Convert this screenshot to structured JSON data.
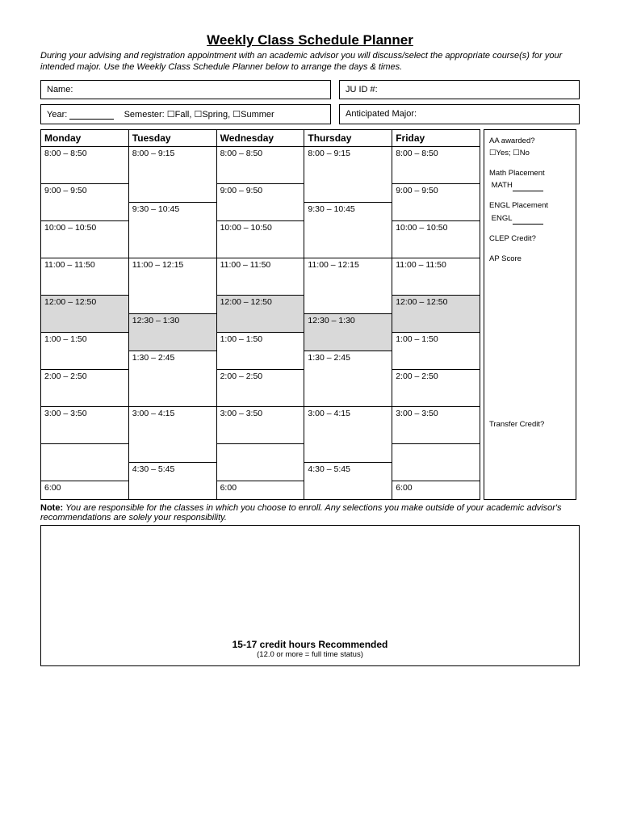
{
  "title": "Weekly Class Schedule Planner",
  "instructions": "During your advising and registration appointment with an academic advisor you will discuss/select the appropriate course(s) for your intended major.  Use the Weekly Class Schedule Planner below to arrange the days & times.",
  "info": {
    "name_label": "Name:",
    "juid_label": "JU ID #:",
    "year_label": "Year:",
    "semester_label": "Semester: ☐Fall, ☐Spring, ☐Summer",
    "major_label": "Anticipated Major:"
  },
  "days": [
    "Monday",
    "Tuesday",
    "Wednesday",
    "Thursday",
    "Friday"
  ],
  "rows": [
    {
      "cells": [
        "8:00 – 8:50",
        "8:00 – 9:15",
        "8:00 – 8:50",
        "8:00 – 9:15",
        "8:00 – 8:50"
      ],
      "spans": [
        1,
        2,
        1,
        2,
        1
      ]
    },
    {
      "cells": [
        "9:00 – 9:50",
        null,
        "9:00 – 9:50",
        null,
        "9:00 – 9:50"
      ],
      "spans": [
        2,
        0,
        2,
        0,
        2
      ]
    },
    {
      "cells": [
        null,
        "9:30 – 10:45",
        null,
        "9:30 – 10:45",
        null
      ],
      "spans": [
        0,
        2,
        0,
        2,
        0
      ]
    },
    {
      "cells": [
        "10:00 – 10:50",
        null,
        "10:00 – 10:50",
        null,
        "10:00 – 10:50"
      ],
      "spans": [
        2,
        0,
        2,
        0,
        2
      ]
    },
    {
      "cells": [
        null,
        "11:00 – 12:15",
        null,
        "11:00 – 12:15",
        null
      ],
      "spans": [
        0,
        2,
        0,
        2,
        0
      ]
    },
    {
      "cells": [
        "11:00 – 11:50",
        null,
        "11:00 – 11:50",
        null,
        "11:00 – 11:50"
      ],
      "spans": [
        2,
        0,
        2,
        0,
        2
      ]
    },
    {
      "cells": [
        "12:00 – 12:50",
        "12:30 – 1:30",
        "12:00 – 12:50",
        "12:30 – 1:30",
        "12:00 – 12:50"
      ],
      "spans": [
        2,
        2,
        2,
        2,
        2
      ],
      "shaded": true,
      "offset": true
    },
    {
      "cells": [
        "1:00 – 1:50",
        "1:30 – 2:45",
        "1:00 – 1:50",
        "1:30 – 2:45",
        "1:00 – 1:50"
      ],
      "spans": [
        2,
        2,
        2,
        2,
        2
      ],
      "offset": true
    },
    {
      "cells": [
        "2:00 – 2:50",
        null,
        "2:00 – 2:50",
        null,
        "2:00 – 2:50"
      ],
      "spans": [
        2,
        0,
        2,
        0,
        2
      ]
    },
    {
      "cells": [
        null,
        "3:00 – 4:15",
        null,
        "3:00 – 4:15",
        null
      ],
      "spans": [
        0,
        2,
        0,
        2,
        0
      ]
    },
    {
      "cells": [
        "3:00 – 3:50",
        null,
        "3:00 – 3:50",
        null,
        "3:00 – 3:50"
      ],
      "spans": [
        2,
        0,
        2,
        0,
        2
      ]
    },
    {
      "cells": [
        null,
        "4:30 – 5:45",
        null,
        "4:30 – 5:45",
        null
      ],
      "spans": [
        0,
        2,
        0,
        2,
        0
      ]
    },
    {
      "cells": [
        "6:00",
        "",
        "6:00",
        "",
        "6:00"
      ],
      "spans": [
        1,
        1,
        1,
        1,
        1
      ],
      "short": true
    }
  ],
  "sidebar": {
    "aa": "AA awarded?",
    "aaopts": "☐Yes; ☐No",
    "math1": "Math Placement",
    "math2": "MATH",
    "engl1": "ENGL Placement",
    "engl2": "ENGL",
    "clep": "CLEP Credit?",
    "ap": "AP Score",
    "transfer": "Transfer Credit?"
  },
  "note_label": "Note:",
  "note_body": "You are responsible for the classes in which you choose to enroll.  Any selections you make outside of your academic advisor's recommendations are solely your responsibility.",
  "credit_main": "15-17 credit hours Recommended",
  "credit_sub": "(12.0 or more = full time status)"
}
